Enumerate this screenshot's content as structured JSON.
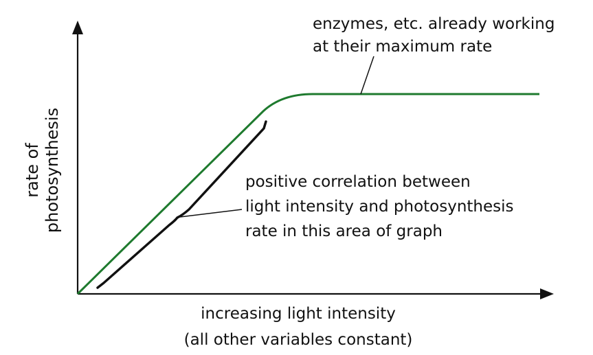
{
  "diagram": {
    "y_axis_label": [
      "rate of",
      "photosynthesis"
    ],
    "x_axis_label": "increasing light intensity",
    "x_axis_note": "(all other variables constant)",
    "plateau_annotation": [
      "enzymes, etc. already working",
      "at their maximum rate"
    ],
    "slope_annotation": [
      "positive correlation between",
      "light intensity and photosynthesis",
      "rate in this area of graph"
    ],
    "curve_color": "#1e7a2e",
    "axis_color": "#111111"
  }
}
